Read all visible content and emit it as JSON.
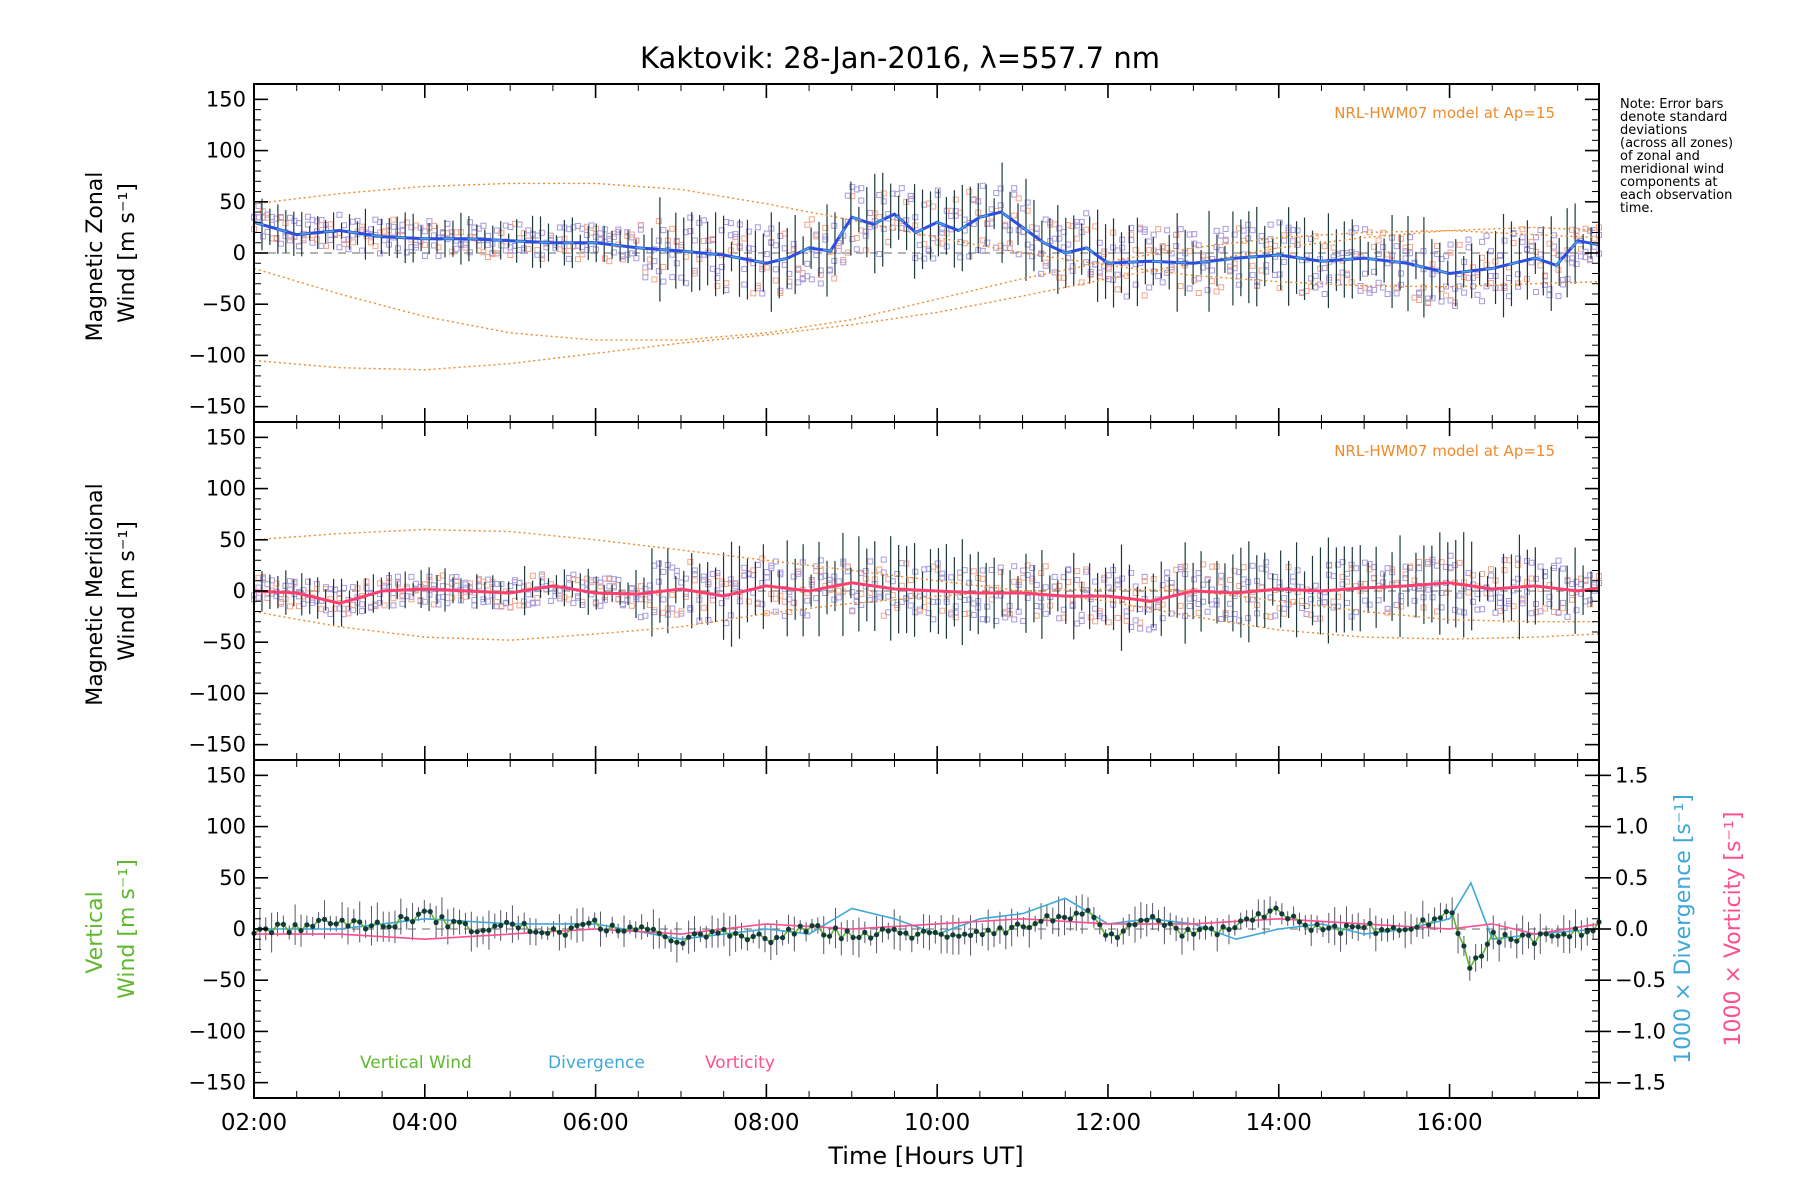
{
  "title": "Kaktovik: 28-Jan-2016, λ=557.7 nm",
  "note_lines": [
    "Note: Error bars",
    "denote standard",
    "deviations",
    "(across all zones)",
    "of zonal and",
    "meridional wind",
    "components at",
    "each observation",
    "time."
  ],
  "model_label": "NRL-HWM07 model at Ap=15",
  "colors": {
    "zonal": "#2b4fe0",
    "zonal_light": "#4aa7dc",
    "meridional": "#ff3f6e",
    "vertical": "#5fb82e",
    "divergence": "#40a8d8",
    "vorticity": "#ff4f8f",
    "model": "#f08a2a",
    "scatter_purple": "#a89ae0",
    "scatter_salmon": "#f4a58a",
    "errorbar": "#1c3a3a"
  },
  "chart_data": [
    {
      "type": "line",
      "panel": "zonal",
      "ylabel_line1": "Magnetic Zonal",
      "ylabel_line2": "Wind [m s⁻¹]",
      "ylim": [
        -165,
        165
      ],
      "yticks": [
        -150,
        -100,
        -50,
        0,
        50,
        100,
        150
      ],
      "xlim": [
        "02:00",
        "17:45"
      ],
      "series": [
        {
          "style": "mean-wind",
          "x": [
            "02:00",
            "02:30",
            "03:00",
            "03:30",
            "04:00",
            "04:30",
            "05:00",
            "05:30",
            "06:00",
            "06:30",
            "07:00",
            "07:30",
            "08:00",
            "08:15",
            "08:30",
            "08:45",
            "09:00",
            "09:15",
            "09:30",
            "09:45",
            "10:00",
            "10:15",
            "10:30",
            "10:45",
            "11:00",
            "11:15",
            "11:30",
            "11:45",
            "12:00",
            "12:30",
            "13:00",
            "13:30",
            "14:00",
            "14:30",
            "15:00",
            "15:30",
            "16:00",
            "16:30",
            "17:00",
            "17:15",
            "17:30",
            "17:45"
          ],
          "values": [
            30,
            18,
            22,
            16,
            14,
            14,
            12,
            10,
            10,
            5,
            2,
            -2,
            -10,
            -5,
            5,
            2,
            35,
            28,
            38,
            20,
            30,
            22,
            35,
            40,
            25,
            10,
            0,
            5,
            -10,
            -8,
            -10,
            -5,
            -2,
            -8,
            -5,
            -10,
            -20,
            -15,
            -5,
            -12,
            12,
            8
          ]
        },
        {
          "style": "model",
          "x": [
            "02:00",
            "03:00",
            "04:00",
            "05:00",
            "06:00",
            "07:00",
            "08:00",
            "09:00",
            "10:00",
            "11:00",
            "12:00",
            "13:00",
            "14:00",
            "15:00",
            "16:00",
            "17:00",
            "17:45"
          ],
          "values": [
            48,
            58,
            65,
            68,
            68,
            62,
            48,
            32,
            15,
            0,
            -12,
            -22,
            -28,
            -32,
            -33,
            -30,
            -28
          ]
        },
        {
          "style": "model",
          "x": [
            "02:00",
            "03:00",
            "04:00",
            "05:00",
            "06:00",
            "07:00",
            "08:00",
            "09:00",
            "10:00",
            "11:00",
            "12:00",
            "13:00",
            "14:00",
            "15:00",
            "16:00",
            "17:00",
            "17:45"
          ],
          "values": [
            -105,
            -112,
            -114,
            -108,
            -98,
            -88,
            -80,
            -70,
            -58,
            -42,
            -25,
            -10,
            5,
            15,
            22,
            25,
            22
          ]
        },
        {
          "style": "model",
          "x": [
            "02:00",
            "03:00",
            "04:00",
            "05:00",
            "06:00",
            "07:00",
            "08:00",
            "09:00",
            "10:00",
            "11:00",
            "12:00",
            "13:00",
            "14:00",
            "15:00",
            "16:00",
            "17:00",
            "17:45"
          ],
          "values": [
            -15,
            -40,
            -62,
            -78,
            -85,
            -85,
            -78,
            -65,
            -45,
            -25,
            -8,
            5,
            15,
            20,
            22,
            18,
            15
          ]
        }
      ]
    },
    {
      "type": "line",
      "panel": "meridional",
      "ylabel_line1": "Magnetic Meridional",
      "ylabel_line2": "Wind [m s⁻¹]",
      "ylim": [
        -165,
        165
      ],
      "yticks": [
        -150,
        -100,
        -50,
        0,
        50,
        100,
        150
      ],
      "series": [
        {
          "style": "mean-wind",
          "x": [
            "02:00",
            "02:30",
            "03:00",
            "03:30",
            "04:00",
            "04:30",
            "05:00",
            "05:30",
            "06:00",
            "06:30",
            "07:00",
            "07:30",
            "08:00",
            "08:30",
            "09:00",
            "09:30",
            "10:00",
            "10:30",
            "11:00",
            "11:30",
            "12:00",
            "12:30",
            "13:00",
            "13:30",
            "14:00",
            "14:30",
            "15:00",
            "15:30",
            "16:00",
            "16:30",
            "17:00",
            "17:30",
            "17:45"
          ],
          "values": [
            0,
            -2,
            -12,
            0,
            2,
            0,
            -2,
            5,
            -2,
            -3,
            2,
            -5,
            5,
            0,
            8,
            2,
            0,
            -2,
            -2,
            -5,
            -5,
            -10,
            0,
            -2,
            2,
            0,
            3,
            5,
            8,
            2,
            5,
            0,
            3
          ]
        },
        {
          "style": "model",
          "x": [
            "02:00",
            "03:00",
            "04:00",
            "05:00",
            "06:00",
            "07:00",
            "08:00",
            "09:00",
            "10:00",
            "11:00",
            "12:00",
            "13:00",
            "14:00",
            "15:00",
            "16:00",
            "17:00",
            "17:45"
          ],
          "values": [
            50,
            56,
            60,
            58,
            50,
            40,
            30,
            20,
            10,
            0,
            -10,
            -25,
            -38,
            -45,
            -47,
            -45,
            -42
          ]
        },
        {
          "style": "model",
          "x": [
            "02:00",
            "03:00",
            "04:00",
            "05:00",
            "06:00",
            "07:00",
            "08:00",
            "09:00",
            "10:00",
            "11:00",
            "12:00",
            "13:00",
            "14:00",
            "15:00",
            "16:00",
            "17:00",
            "17:45"
          ],
          "values": [
            -20,
            -35,
            -45,
            -48,
            -42,
            -35,
            -22,
            -12,
            -5,
            0,
            2,
            0,
            -10,
            -20,
            -28,
            -30,
            -30
          ]
        }
      ]
    },
    {
      "type": "line",
      "panel": "vertical",
      "ylabel_line1": "Vertical",
      "ylabel_line2": "Wind [m s⁻¹]",
      "ylim": [
        -165,
        165
      ],
      "yticks": [
        -150,
        -100,
        -50,
        0,
        50,
        100,
        150
      ],
      "y2_label_div": "1000 × Divergence [s⁻¹]",
      "y2_label_vort": "1000 × Vorticity [s⁻¹]",
      "y2lim": [
        -1.65,
        1.65
      ],
      "y2ticks": [
        -1.5,
        -1.0,
        -0.5,
        0.0,
        0.5,
        1.0,
        1.5
      ],
      "xticks": [
        "02:00",
        "04:00",
        "06:00",
        "08:00",
        "10:00",
        "12:00",
        "14:00",
        "16:00"
      ],
      "xlabel": "Time [Hours UT]",
      "legend": [
        "Vertical Wind",
        "Divergence",
        "Vorticity"
      ],
      "series": [
        {
          "name": "Vertical Wind",
          "x": [
            "02:00",
            "02:30",
            "03:00",
            "03:30",
            "04:00",
            "04:30",
            "05:00",
            "05:30",
            "06:00",
            "06:30",
            "07:00",
            "07:30",
            "08:00",
            "08:30",
            "09:00",
            "09:30",
            "10:00",
            "10:30",
            "11:00",
            "11:30",
            "11:45",
            "12:00",
            "12:30",
            "13:00",
            "13:30",
            "14:00",
            "14:30",
            "15:00",
            "15:30",
            "16:00",
            "16:15",
            "16:30",
            "17:00",
            "17:30",
            "17:45"
          ],
          "values": [
            0,
            2,
            8,
            2,
            15,
            0,
            4,
            -4,
            4,
            -2,
            -10,
            -5,
            -10,
            0,
            -6,
            -4,
            -6,
            -2,
            2,
            14,
            15,
            -10,
            8,
            -6,
            2,
            18,
            -2,
            2,
            -4,
            20,
            -40,
            -8,
            -10,
            -4,
            5
          ]
        },
        {
          "name": "Divergence",
          "x": [
            "02:00",
            "03:00",
            "04:00",
            "05:00",
            "06:00",
            "07:00",
            "08:00",
            "08:30",
            "09:00",
            "09:30",
            "10:00",
            "10:30",
            "11:00",
            "11:30",
            "12:00",
            "12:30",
            "13:00",
            "13:30",
            "14:00",
            "14:30",
            "15:00",
            "15:30",
            "16:00",
            "16:15",
            "16:30",
            "17:00",
            "17:45"
          ],
          "values": [
            0.0,
            0.0,
            0.1,
            0.05,
            0.05,
            -0.1,
            0.0,
            -0.05,
            0.2,
            0.1,
            -0.05,
            0.1,
            0.15,
            0.3,
            0.05,
            0.1,
            0.05,
            -0.1,
            0.0,
            0.05,
            -0.05,
            0.0,
            0.1,
            0.45,
            -0.1,
            -0.05,
            0.0
          ]
        },
        {
          "name": "Vorticity",
          "x": [
            "02:00",
            "03:00",
            "04:00",
            "05:00",
            "06:00",
            "07:00",
            "08:00",
            "09:00",
            "10:00",
            "11:00",
            "12:00",
            "13:00",
            "14:00",
            "15:00",
            "16:00",
            "16:30",
            "17:00",
            "17:45"
          ],
          "values": [
            -0.05,
            -0.05,
            -0.1,
            -0.05,
            0.0,
            -0.05,
            0.05,
            0.0,
            0.05,
            0.1,
            0.05,
            0.05,
            0.1,
            0.05,
            0.0,
            0.05,
            -0.05,
            0.05
          ]
        }
      ]
    }
  ]
}
